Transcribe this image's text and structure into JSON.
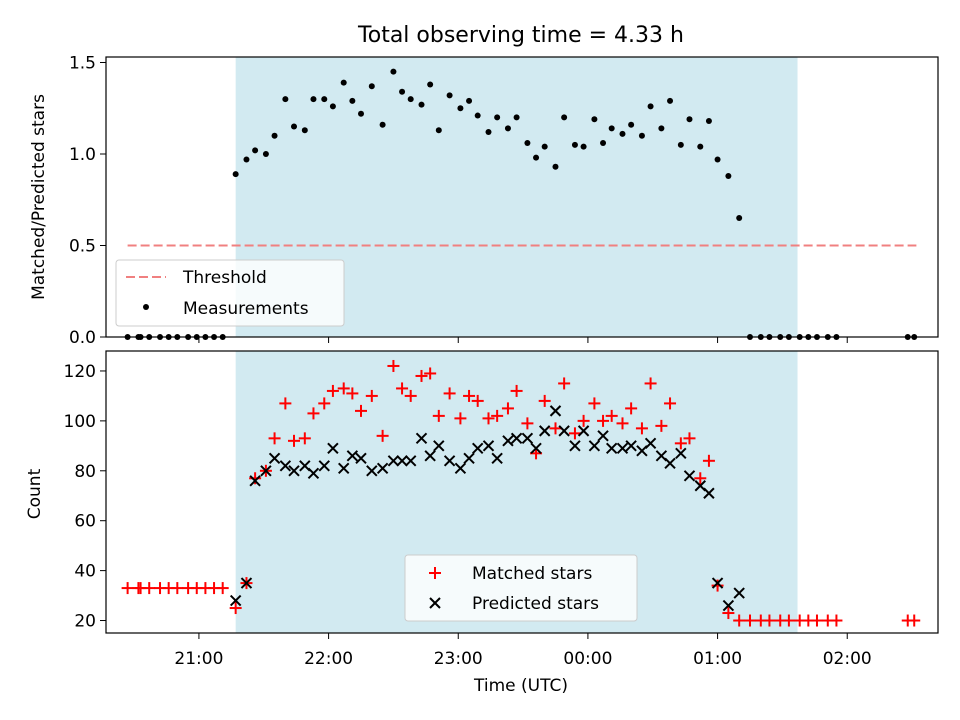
{
  "title": "Total observing time = 4.33 h",
  "colors": {
    "shade": "#add8e6",
    "threshold": "#f08080",
    "measurement": "#000000",
    "matched": "#ff0000",
    "predicted": "#000000"
  },
  "chart_data": [
    {
      "type": "scatter",
      "panel": "top",
      "ylabel": "Matched/Predicted stars",
      "ylim": [
        0,
        1.53
      ],
      "xlim": [
        "20:17",
        "02:42"
      ],
      "yticks": [
        "0.0",
        "0.5",
        "1.0",
        "1.5"
      ],
      "xtick_labels_shown": false,
      "grid": false,
      "legend_position": "lower-left",
      "shaded_span": [
        "21:17",
        "01:37"
      ],
      "threshold": {
        "name": "Threshold",
        "y": 0.5,
        "x_range": [
          "20:27",
          "02:32"
        ],
        "style": "dashed"
      },
      "series": [
        {
          "name": "Measurements",
          "marker": "dot",
          "points": [
            [
              "20:27",
              0
            ],
            [
              "20:32",
              0
            ],
            [
              "20:33",
              0
            ],
            [
              "20:37",
              0
            ],
            [
              "20:42",
              0
            ],
            [
              "20:46",
              0
            ],
            [
              "20:50",
              0
            ],
            [
              "20:55",
              0
            ],
            [
              "20:59",
              0
            ],
            [
              "21:03",
              0
            ],
            [
              "21:07",
              0
            ],
            [
              "21:11",
              0
            ],
            [
              "21:17",
              0.89
            ],
            [
              "21:22",
              0.97
            ],
            [
              "21:26",
              1.02
            ],
            [
              "21:31",
              1.0
            ],
            [
              "21:35",
              1.1
            ],
            [
              "21:40",
              1.3
            ],
            [
              "21:44",
              1.15
            ],
            [
              "21:49",
              1.13
            ],
            [
              "21:53",
              1.3
            ],
            [
              "21:58",
              1.3
            ],
            [
              "22:02",
              1.26
            ],
            [
              "22:07",
              1.39
            ],
            [
              "22:11",
              1.29
            ],
            [
              "22:15",
              1.22
            ],
            [
              "22:20",
              1.37
            ],
            [
              "22:25",
              1.16
            ],
            [
              "22:30",
              1.45
            ],
            [
              "22:34",
              1.34
            ],
            [
              "22:38",
              1.3
            ],
            [
              "22:43",
              1.27
            ],
            [
              "22:47",
              1.38
            ],
            [
              "22:51",
              1.13
            ],
            [
              "22:56",
              1.32
            ],
            [
              "23:01",
              1.25
            ],
            [
              "23:05",
              1.29
            ],
            [
              "23:09",
              1.21
            ],
            [
              "23:14",
              1.12
            ],
            [
              "23:18",
              1.2
            ],
            [
              "23:23",
              1.14
            ],
            [
              "23:27",
              1.2
            ],
            [
              "23:32",
              1.06
            ],
            [
              "23:36",
              0.98
            ],
            [
              "23:40",
              1.04
            ],
            [
              "23:45",
              0.93
            ],
            [
              "23:49",
              1.2
            ],
            [
              "23:54",
              1.05
            ],
            [
              "23:58",
              1.04
            ],
            [
              "00:03",
              1.19
            ],
            [
              "00:07",
              1.06
            ],
            [
              "00:11",
              1.14
            ],
            [
              "00:16",
              1.11
            ],
            [
              "00:20",
              1.16
            ],
            [
              "00:25",
              1.1
            ],
            [
              "00:29",
              1.26
            ],
            [
              "00:34",
              1.14
            ],
            [
              "00:38",
              1.29
            ],
            [
              "00:43",
              1.05
            ],
            [
              "00:47",
              1.19
            ],
            [
              "00:52",
              1.04
            ],
            [
              "00:56",
              1.18
            ],
            [
              "01:00",
              0.97
            ],
            [
              "01:05",
              0.88
            ],
            [
              "01:10",
              0.65
            ],
            [
              "01:15",
              0
            ],
            [
              "01:20",
              0
            ],
            [
              "01:24",
              0
            ],
            [
              "01:29",
              0
            ],
            [
              "01:33",
              0
            ],
            [
              "01:38",
              0
            ],
            [
              "01:42",
              0
            ],
            [
              "01:46",
              0
            ],
            [
              "01:51",
              0
            ],
            [
              "01:55",
              0
            ],
            [
              "02:28",
              0
            ],
            [
              "02:31",
              0
            ]
          ]
        }
      ]
    },
    {
      "type": "scatter",
      "panel": "bottom",
      "xlabel": "Time (UTC)",
      "ylabel": "Count",
      "ylim": [
        15,
        128
      ],
      "xlim": [
        "20:17",
        "02:42"
      ],
      "yticks": [
        "20",
        "40",
        "60",
        "80",
        "100",
        "120"
      ],
      "xticks": [
        "21:00",
        "22:00",
        "23:00",
        "00:00",
        "01:00",
        "02:00"
      ],
      "grid": false,
      "legend_position": "lower-center",
      "shaded_span": [
        "21:17",
        "01:37"
      ],
      "series": [
        {
          "name": "Matched stars",
          "marker": "plus",
          "points": [
            [
              "20:27",
              33
            ],
            [
              "20:32",
              33
            ],
            [
              "20:33",
              33
            ],
            [
              "20:37",
              33
            ],
            [
              "20:42",
              33
            ],
            [
              "20:46",
              33
            ],
            [
              "20:50",
              33
            ],
            [
              "20:55",
              33
            ],
            [
              "20:59",
              33
            ],
            [
              "21:03",
              33
            ],
            [
              "21:07",
              33
            ],
            [
              "21:11",
              33
            ],
            [
              "21:17",
              25
            ],
            [
              "21:22",
              35
            ],
            [
              "21:26",
              77
            ],
            [
              "21:31",
              80
            ],
            [
              "21:35",
              93
            ],
            [
              "21:40",
              107
            ],
            [
              "21:44",
              92
            ],
            [
              "21:49",
              93
            ],
            [
              "21:53",
              103
            ],
            [
              "21:58",
              107
            ],
            [
              "22:02",
              112
            ],
            [
              "22:07",
              113
            ],
            [
              "22:11",
              111
            ],
            [
              "22:15",
              104
            ],
            [
              "22:20",
              110
            ],
            [
              "22:25",
              94
            ],
            [
              "22:30",
              122
            ],
            [
              "22:34",
              113
            ],
            [
              "22:38",
              110
            ],
            [
              "22:43",
              118
            ],
            [
              "22:47",
              119
            ],
            [
              "22:51",
              102
            ],
            [
              "22:56",
              111
            ],
            [
              "23:01",
              101
            ],
            [
              "23:05",
              110
            ],
            [
              "23:09",
              108
            ],
            [
              "23:14",
              101
            ],
            [
              "23:18",
              102
            ],
            [
              "23:23",
              105
            ],
            [
              "23:27",
              112
            ],
            [
              "23:32",
              99
            ],
            [
              "23:36",
              87
            ],
            [
              "23:40",
              108
            ],
            [
              "23:45",
              97
            ],
            [
              "23:49",
              115
            ],
            [
              "23:54",
              95
            ],
            [
              "23:58",
              100
            ],
            [
              "00:03",
              107
            ],
            [
              "00:07",
              100
            ],
            [
              "00:11",
              102
            ],
            [
              "00:16",
              99
            ],
            [
              "00:20",
              105
            ],
            [
              "00:25",
              97
            ],
            [
              "00:29",
              115
            ],
            [
              "00:34",
              98
            ],
            [
              "00:38",
              107
            ],
            [
              "00:43",
              91
            ],
            [
              "00:47",
              93
            ],
            [
              "00:52",
              77
            ],
            [
              "00:56",
              84
            ],
            [
              "01:00",
              34
            ],
            [
              "01:05",
              23
            ],
            [
              "01:10",
              20
            ],
            [
              "01:15",
              20
            ],
            [
              "01:20",
              20
            ],
            [
              "01:24",
              20
            ],
            [
              "01:29",
              20
            ],
            [
              "01:33",
              20
            ],
            [
              "01:38",
              20
            ],
            [
              "01:42",
              20
            ],
            [
              "01:46",
              20
            ],
            [
              "01:51",
              20
            ],
            [
              "01:55",
              20
            ],
            [
              "02:28",
              20
            ],
            [
              "02:31",
              20
            ]
          ]
        },
        {
          "name": "Predicted stars",
          "marker": "x",
          "points": [
            [
              "21:17",
              28
            ],
            [
              "21:22",
              35
            ],
            [
              "21:26",
              76
            ],
            [
              "21:31",
              80
            ],
            [
              "21:35",
              85
            ],
            [
              "21:40",
              82
            ],
            [
              "21:44",
              80
            ],
            [
              "21:49",
              82
            ],
            [
              "21:53",
              79
            ],
            [
              "21:58",
              82
            ],
            [
              "22:02",
              89
            ],
            [
              "22:07",
              81
            ],
            [
              "22:11",
              86
            ],
            [
              "22:15",
              85
            ],
            [
              "22:20",
              80
            ],
            [
              "22:25",
              81
            ],
            [
              "22:30",
              84
            ],
            [
              "22:34",
              84
            ],
            [
              "22:38",
              84
            ],
            [
              "22:43",
              93
            ],
            [
              "22:47",
              86
            ],
            [
              "22:51",
              90
            ],
            [
              "22:56",
              84
            ],
            [
              "23:01",
              81
            ],
            [
              "23:05",
              85
            ],
            [
              "23:09",
              89
            ],
            [
              "23:14",
              90
            ],
            [
              "23:18",
              85
            ],
            [
              "23:23",
              92
            ],
            [
              "23:27",
              93
            ],
            [
              "23:32",
              93
            ],
            [
              "23:36",
              89
            ],
            [
              "23:40",
              96
            ],
            [
              "23:45",
              104
            ],
            [
              "23:49",
              96
            ],
            [
              "23:54",
              90
            ],
            [
              "23:58",
              96
            ],
            [
              "00:03",
              90
            ],
            [
              "00:07",
              94
            ],
            [
              "00:11",
              89
            ],
            [
              "00:16",
              89
            ],
            [
              "00:20",
              90
            ],
            [
              "00:25",
              88
            ],
            [
              "00:29",
              91
            ],
            [
              "00:34",
              86
            ],
            [
              "00:38",
              83
            ],
            [
              "00:43",
              87
            ],
            [
              "00:47",
              78
            ],
            [
              "00:52",
              74
            ],
            [
              "00:56",
              71
            ],
            [
              "01:00",
              35
            ],
            [
              "01:05",
              26
            ],
            [
              "01:10",
              31
            ]
          ]
        }
      ]
    }
  ]
}
